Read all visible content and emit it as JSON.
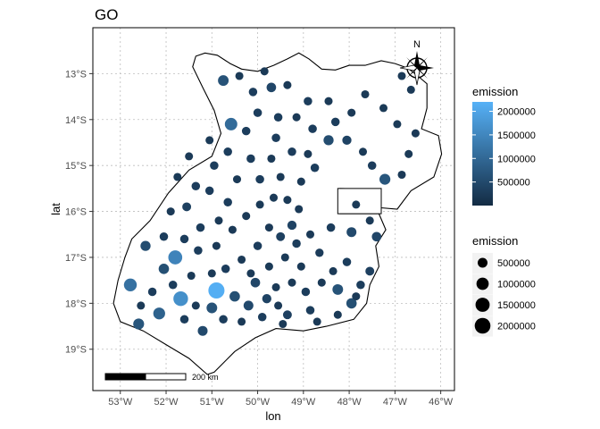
{
  "chart_data": {
    "type": "scatter",
    "title": "GO",
    "xlabel": "lon",
    "ylabel": "lat",
    "xlim": [
      -53.6,
      -45.7
    ],
    "ylim": [
      -19.9,
      -12.0
    ],
    "x_ticks": [
      -53,
      -52,
      -51,
      -50,
      -49,
      -48,
      -47,
      -46
    ],
    "x_tick_labels": [
      "53°W",
      "52°W",
      "51°W",
      "50°W",
      "49°W",
      "48°W",
      "47°W",
      "46°W"
    ],
    "y_ticks": [
      -13,
      -14,
      -15,
      -16,
      -17,
      -18,
      -19
    ],
    "y_tick_labels": [
      "13°S",
      "14°S",
      "15°S",
      "16°S",
      "17°S",
      "18°S",
      "19°S"
    ],
    "grid": true,
    "north_arrow_label": "N",
    "scale_bar_label": "200 km",
    "state_boundary": [
      [
        -51.42,
        -12.85
      ],
      [
        -51.35,
        -12.62
      ],
      [
        -51.15,
        -12.55
      ],
      [
        -50.88,
        -12.6
      ],
      [
        -50.6,
        -12.78
      ],
      [
        -50.35,
        -12.9
      ],
      [
        -50.0,
        -12.95
      ],
      [
        -49.65,
        -12.82
      ],
      [
        -49.35,
        -12.68
      ],
      [
        -49.1,
        -12.55
      ],
      [
        -48.88,
        -12.68
      ],
      [
        -48.6,
        -12.9
      ],
      [
        -48.3,
        -12.92
      ],
      [
        -48.0,
        -12.82
      ],
      [
        -47.65,
        -12.82
      ],
      [
        -47.3,
        -12.72
      ],
      [
        -47.0,
        -12.78
      ],
      [
        -46.72,
        -12.88
      ],
      [
        -46.5,
        -13.05
      ],
      [
        -46.3,
        -13.22
      ],
      [
        -46.3,
        -13.75
      ],
      [
        -46.42,
        -14.2
      ],
      [
        -46.05,
        -14.35
      ],
      [
        -45.98,
        -14.75
      ],
      [
        -46.15,
        -15.25
      ],
      [
        -46.65,
        -15.55
      ],
      [
        -46.95,
        -15.95
      ],
      [
        -47.3,
        -15.92
      ],
      [
        -47.32,
        -15.52
      ],
      [
        -48.2,
        -15.5
      ],
      [
        -48.2,
        -16.05
      ],
      [
        -47.35,
        -16.05
      ],
      [
        -47.2,
        -16.4
      ],
      [
        -47.42,
        -16.75
      ],
      [
        -47.35,
        -17.2
      ],
      [
        -47.55,
        -17.6
      ],
      [
        -47.62,
        -18.0
      ],
      [
        -47.9,
        -18.35
      ],
      [
        -48.5,
        -18.5
      ],
      [
        -49.0,
        -18.6
      ],
      [
        -49.6,
        -18.55
      ],
      [
        -50.05,
        -18.75
      ],
      [
        -50.5,
        -19.05
      ],
      [
        -50.95,
        -19.5
      ],
      [
        -51.1,
        -19.55
      ],
      [
        -51.5,
        -19.2
      ],
      [
        -52.0,
        -18.9
      ],
      [
        -52.5,
        -18.6
      ],
      [
        -53.0,
        -18.4
      ],
      [
        -53.15,
        -18.0
      ],
      [
        -53.05,
        -17.5
      ],
      [
        -52.9,
        -17.0
      ],
      [
        -52.75,
        -16.6
      ],
      [
        -52.35,
        -16.2
      ],
      [
        -51.95,
        -15.6
      ],
      [
        -51.5,
        -15.1
      ],
      [
        -51.0,
        -14.8
      ],
      [
        -50.8,
        -14.3
      ],
      [
        -50.95,
        -13.8
      ],
      [
        -51.2,
        -13.3
      ],
      [
        -51.42,
        -12.85
      ]
    ],
    "df_boundary": [
      [
        -48.25,
        -15.5
      ],
      [
        -47.3,
        -15.5
      ],
      [
        -47.3,
        -16.05
      ],
      [
        -48.25,
        -16.05
      ]
    ],
    "color_scale": {
      "low": "#132B43",
      "high": "#56B1F7",
      "min": 0,
      "max": 2200000
    },
    "legends": [
      {
        "title": "emission",
        "kind": "colorbar",
        "labels": [
          "2000000",
          "1500000",
          "1000000",
          "500000"
        ],
        "values": [
          2000000,
          1500000,
          1000000,
          500000
        ]
      },
      {
        "title": "emission",
        "kind": "size",
        "labels": [
          "500000",
          "1000000",
          "1500000",
          "2000000"
        ],
        "values": [
          500000,
          1000000,
          1500000,
          2000000
        ]
      }
    ],
    "points": [
      [
        -50.9,
        -17.72,
        2150000
      ],
      [
        -51.68,
        -17.9,
        1650000
      ],
      [
        -51.8,
        -17.0,
        1450000
      ],
      [
        -52.78,
        -17.6,
        1150000
      ],
      [
        -50.58,
        -14.1,
        1050000
      ],
      [
        -52.15,
        -18.22,
        900000
      ],
      [
        -52.6,
        -18.45,
        700000
      ],
      [
        -50.75,
        -13.15,
        650000
      ],
      [
        -52.05,
        -17.25,
        600000
      ],
      [
        -52.45,
        -16.75,
        550000
      ],
      [
        -51.2,
        -18.6,
        500000
      ],
      [
        -51.0,
        -18.1,
        650000
      ],
      [
        -50.5,
        -17.85,
        600000
      ],
      [
        -50.2,
        -18.05,
        500000
      ],
      [
        -50.05,
        -17.55,
        450000
      ],
      [
        -49.8,
        -17.9,
        400000
      ],
      [
        -49.35,
        -18.25,
        350000
      ],
      [
        -48.85,
        -18.15,
        300000
      ],
      [
        -48.25,
        -17.7,
        650000
      ],
      [
        -47.95,
        -18.0,
        600000
      ],
      [
        -47.75,
        -17.6,
        300000
      ],
      [
        -47.55,
        -17.3,
        350000
      ],
      [
        -47.4,
        -16.55,
        450000
      ],
      [
        -47.95,
        -16.45,
        500000
      ],
      [
        -48.05,
        -17.1,
        300000
      ],
      [
        -48.65,
        -16.9,
        280000
      ],
      [
        -48.4,
        -16.35,
        300000
      ],
      [
        -47.22,
        -15.3,
        700000
      ],
      [
        -47.5,
        -15.0,
        300000
      ],
      [
        -47.7,
        -14.7,
        250000
      ],
      [
        -48.05,
        -14.45,
        400000
      ],
      [
        -48.3,
        -14.05,
        300000
      ],
      [
        -48.45,
        -13.6,
        250000
      ],
      [
        -48.45,
        -14.45,
        550000
      ],
      [
        -48.9,
        -13.6,
        300000
      ],
      [
        -49.35,
        -13.25,
        250000
      ],
      [
        -49.7,
        -13.3,
        450000
      ],
      [
        -50.1,
        -13.4,
        300000
      ],
      [
        -50.0,
        -13.85,
        300000
      ],
      [
        -49.55,
        -13.95,
        300000
      ],
      [
        -49.15,
        -13.95,
        250000
      ],
      [
        -48.8,
        -14.2,
        300000
      ],
      [
        -49.6,
        -14.4,
        300000
      ],
      [
        -50.25,
        -14.25,
        300000
      ],
      [
        -50.65,
        -14.7,
        300000
      ],
      [
        -50.15,
        -14.85,
        300000
      ],
      [
        -49.7,
        -14.85,
        250000
      ],
      [
        -49.25,
        -14.7,
        300000
      ],
      [
        -48.9,
        -14.75,
        250000
      ],
      [
        -48.75,
        -15.05,
        300000
      ],
      [
        -49.05,
        -15.35,
        250000
      ],
      [
        -49.5,
        -15.25,
        250000
      ],
      [
        -49.95,
        -15.3,
        300000
      ],
      [
        -50.45,
        -15.3,
        250000
      ],
      [
        -50.95,
        -15.0,
        300000
      ],
      [
        -51.35,
        -15.45,
        300000
      ],
      [
        -51.55,
        -15.9,
        350000
      ],
      [
        -51.05,
        -15.55,
        300000
      ],
      [
        -50.65,
        -15.8,
        300000
      ],
      [
        -50.85,
        -16.2,
        250000
      ],
      [
        -51.25,
        -16.35,
        300000
      ],
      [
        -51.6,
        -16.6,
        300000
      ],
      [
        -52.05,
        -16.55,
        300000
      ],
      [
        -51.9,
        -16.0,
        250000
      ],
      [
        -51.3,
        -16.85,
        300000
      ],
      [
        -50.9,
        -16.75,
        250000
      ],
      [
        -50.55,
        -16.4,
        250000
      ],
      [
        -50.25,
        -16.1,
        250000
      ],
      [
        -49.95,
        -15.85,
        250000
      ],
      [
        -49.65,
        -15.7,
        250000
      ],
      [
        -49.35,
        -15.75,
        250000
      ],
      [
        -49.1,
        -15.95,
        250000
      ],
      [
        -49.25,
        -16.3,
        400000
      ],
      [
        -49.5,
        -16.55,
        350000
      ],
      [
        -49.15,
        -16.7,
        300000
      ],
      [
        -48.85,
        -16.5,
        250000
      ],
      [
        -49.75,
        -16.35,
        250000
      ],
      [
        -50.0,
        -16.75,
        300000
      ],
      [
        -50.35,
        -17.05,
        250000
      ],
      [
        -50.7,
        -17.25,
        300000
      ],
      [
        -51.0,
        -17.35,
        250000
      ],
      [
        -51.45,
        -17.4,
        250000
      ],
      [
        -51.85,
        -17.6,
        300000
      ],
      [
        -52.3,
        -17.75,
        300000
      ],
      [
        -52.55,
        -18.05,
        250000
      ],
      [
        -51.6,
        -18.35,
        300000
      ],
      [
        -51.35,
        -18.05,
        250000
      ],
      [
        -50.75,
        -18.35,
        300000
      ],
      [
        -50.35,
        -18.4,
        250000
      ],
      [
        -49.9,
        -18.3,
        300000
      ],
      [
        -49.55,
        -18.05,
        250000
      ],
      [
        -49.6,
        -17.65,
        250000
      ],
      [
        -49.25,
        -17.55,
        250000
      ],
      [
        -48.95,
        -17.75,
        300000
      ],
      [
        -48.6,
        -17.55,
        250000
      ],
      [
        -48.35,
        -17.3,
        250000
      ],
      [
        -49.05,
        -17.2,
        250000
      ],
      [
        -49.4,
        -17.0,
        250000
      ],
      [
        -49.75,
        -17.2,
        250000
      ],
      [
        -50.15,
        -17.35,
        250000
      ],
      [
        -48.7,
        -18.4,
        250000
      ],
      [
        -48.25,
        -18.25,
        250000
      ],
      [
        -47.85,
        -17.85,
        250000
      ],
      [
        -49.45,
        -18.45,
        250000
      ],
      [
        -51.75,
        -15.25,
        250000
      ],
      [
        -51.5,
        -14.8,
        250000
      ],
      [
        -51.05,
        -14.45,
        250000
      ],
      [
        -47.85,
        -15.85,
        250000
      ],
      [
        -47.55,
        -16.2,
        250000
      ],
      [
        -46.85,
        -15.2,
        250000
      ],
      [
        -46.7,
        -14.75,
        250000
      ],
      [
        -46.55,
        -14.3,
        250000
      ],
      [
        -46.95,
        -14.1,
        250000
      ],
      [
        -47.25,
        -13.75,
        250000
      ],
      [
        -47.65,
        -13.45,
        250000
      ],
      [
        -47.95,
        -13.85,
        250000
      ],
      [
        -46.65,
        -13.35,
        250000
      ],
      [
        -46.85,
        -13.05,
        250000
      ],
      [
        -49.85,
        -12.95,
        250000
      ],
      [
        -50.4,
        -13.05,
        250000
      ]
    ]
  }
}
